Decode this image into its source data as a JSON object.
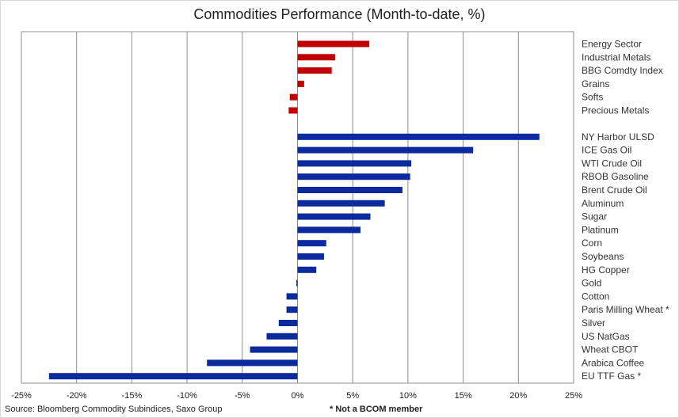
{
  "chart_data": {
    "type": "bar",
    "orientation": "horizontal",
    "title": "Commodities Performance (Month-to-date, %)",
    "xlim": [
      -25,
      25
    ],
    "x_ticks": [
      "-25%",
      "-20%",
      "-15%",
      "-10%",
      "-5%",
      "0%",
      "5%",
      "10%",
      "15%",
      "20%",
      "25%"
    ],
    "x_tick_values": [
      -25,
      -20,
      -15,
      -10,
      -5,
      0,
      5,
      10,
      15,
      20,
      25
    ],
    "grid": "vertical",
    "series": [
      {
        "color": "#c00000",
        "categories": [
          "Energy Sector",
          "Industrial Metals",
          "BBG Comdty Index",
          "Grains",
          "Softs",
          "Precious Metals"
        ],
        "values": [
          6.5,
          3.4,
          3.1,
          0.6,
          -0.7,
          -0.8
        ]
      },
      {
        "color": "#0a2a9e",
        "categories": [
          "NY Harbor ULSD",
          "ICE Gas Oil",
          "WTI Crude Oil",
          "RBOB Gasoline",
          "Brent Crude Oil",
          "Aluminum",
          "Sugar",
          "Platinum",
          "Corn",
          "Soybeans",
          "HG Copper",
          "Gold",
          "Cotton",
          "Paris Milling Wheat *",
          "Silver",
          "US NatGas",
          "Wheat CBOT",
          "Arabica Coffee",
          "EU TTF Gas *"
        ],
        "values": [
          21.9,
          15.9,
          10.3,
          10.2,
          9.5,
          7.9,
          6.6,
          5.7,
          2.6,
          2.4,
          1.7,
          -0.1,
          -1.0,
          -1.0,
          -1.7,
          -2.8,
          -4.3,
          -8.2,
          -22.5
        ]
      }
    ]
  },
  "footer": {
    "source": "Source: Bloomberg Commodity Subindices, Saxo Group",
    "footnote": "* Not a BCOM member"
  }
}
